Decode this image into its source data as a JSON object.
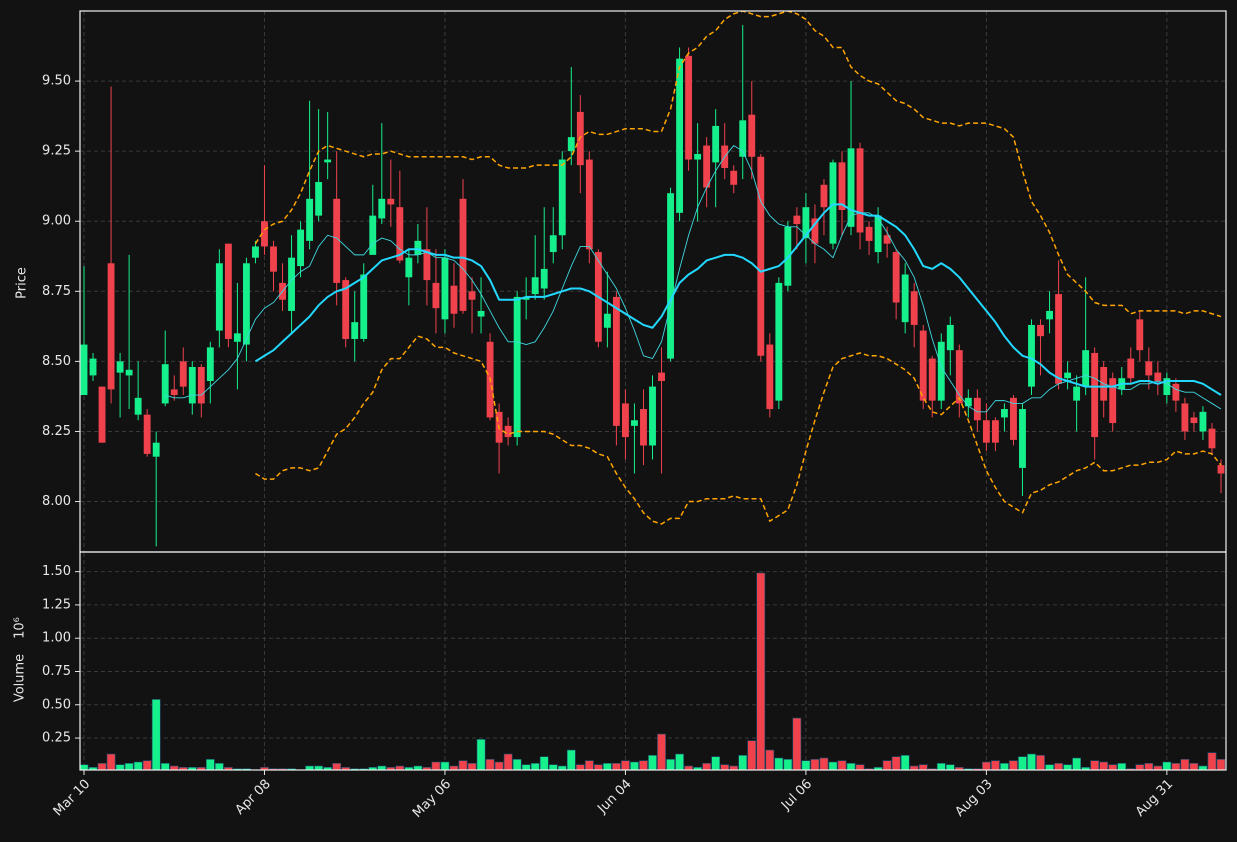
{
  "chart_data": {
    "type": "candlestick",
    "ylabel": "Price",
    "volume_label": "Volume",
    "volume_scale_label": "10⁶",
    "categories": [
      "Mar 10",
      null,
      null,
      null,
      null,
      null,
      null,
      null,
      null,
      null,
      null,
      null,
      null,
      null,
      null,
      null,
      null,
      null,
      null,
      null,
      "Apr 08",
      null,
      null,
      null,
      null,
      null,
      null,
      null,
      null,
      null,
      null,
      null,
      null,
      null,
      null,
      null,
      null,
      null,
      null,
      null,
      "May 06",
      null,
      null,
      null,
      null,
      null,
      null,
      null,
      null,
      null,
      null,
      null,
      null,
      null,
      null,
      null,
      null,
      null,
      null,
      null,
      "Jun 04",
      null,
      null,
      null,
      null,
      null,
      null,
      null,
      null,
      null,
      null,
      null,
      null,
      null,
      null,
      null,
      null,
      null,
      null,
      null,
      "Jul 06",
      null,
      null,
      null,
      null,
      null,
      null,
      null,
      null,
      null,
      null,
      null,
      null,
      null,
      null,
      null,
      null,
      null,
      null,
      null,
      "Aug 03",
      null,
      null,
      null,
      null,
      null,
      null,
      null,
      null,
      null,
      null,
      null,
      null,
      null,
      null,
      null,
      null,
      null,
      null,
      null,
      "Aug 31",
      null,
      null,
      null,
      null,
      null,
      null
    ],
    "open": [
      8.38,
      8.45,
      8.41,
      8.85,
      8.46,
      8.45,
      8.31,
      8.31,
      8.16,
      8.35,
      8.4,
      8.5,
      8.35,
      8.48,
      8.43,
      8.61,
      8.92,
      8.57,
      8.56,
      8.87,
      9.0,
      8.91,
      8.78,
      8.68,
      8.84,
      8.93,
      9.02,
      9.21,
      9.08,
      8.79,
      8.58,
      8.58,
      8.88,
      9.01,
      9.08,
      9.05,
      8.8,
      8.88,
      8.9,
      8.78,
      8.65,
      8.77,
      9.08,
      8.75,
      8.66,
      8.57,
      8.32,
      8.27,
      8.23,
      8.72,
      8.74,
      8.76,
      8.89,
      8.95,
      9.25,
      9.39,
      9.22,
      8.89,
      8.62,
      8.73,
      8.35,
      8.27,
      8.33,
      8.2,
      8.46,
      8.51,
      9.03,
      9.59,
      9.22,
      9.27,
      9.21,
      9.27,
      9.18,
      9.23,
      9.38,
      9.23,
      8.56,
      8.36,
      8.77,
      9.02,
      8.94,
      9.01,
      9.13,
      8.92,
      9.21,
      8.98,
      9.26,
      8.98,
      8.89,
      8.95,
      8.89,
      8.64,
      8.75,
      8.61,
      8.51,
      8.36,
      8.54,
      8.54,
      8.34,
      8.37,
      8.29,
      8.29,
      8.3,
      8.37,
      8.12,
      8.41,
      8.63,
      8.65,
      8.74,
      8.44,
      8.36,
      8.41,
      8.53,
      8.48,
      8.44,
      8.4,
      8.51,
      8.65,
      8.5,
      8.46,
      8.38,
      8.42,
      8.35,
      8.3,
      8.25,
      8.26,
      8.13
    ],
    "high": [
      8.84,
      8.53,
      8.41,
      9.48,
      8.53,
      8.88,
      8.5,
      8.33,
      8.25,
      8.61,
      8.45,
      8.55,
      8.5,
      8.49,
      8.57,
      8.9,
      8.92,
      8.78,
      8.87,
      8.93,
      9.2,
      8.93,
      8.85,
      8.95,
      9.0,
      9.43,
      9.4,
      9.39,
      9.25,
      8.8,
      8.75,
      8.85,
      9.13,
      9.35,
      9.22,
      9.18,
      8.9,
      8.99,
      9.05,
      8.9,
      8.9,
      8.85,
      9.15,
      8.8,
      8.8,
      8.6,
      8.35,
      8.3,
      8.75,
      8.8,
      8.95,
      9.05,
      9.05,
      9.25,
      9.55,
      9.45,
      9.25,
      8.9,
      8.82,
      8.75,
      8.4,
      8.35,
      8.4,
      8.45,
      8.55,
      9.12,
      9.62,
      9.62,
      9.35,
      9.3,
      9.4,
      9.35,
      9.2,
      9.7,
      9.5,
      9.24,
      8.6,
      8.8,
      9.0,
      9.05,
      9.1,
      9.06,
      9.15,
      9.22,
      9.25,
      9.5,
      9.28,
      9.0,
      9.05,
      8.98,
      8.9,
      8.85,
      8.78,
      8.63,
      8.52,
      8.6,
      8.66,
      8.56,
      8.4,
      8.4,
      8.35,
      8.3,
      8.35,
      8.38,
      8.35,
      8.65,
      8.65,
      8.75,
      8.86,
      8.5,
      8.45,
      8.8,
      8.55,
      8.5,
      8.46,
      8.48,
      8.55,
      8.68,
      8.55,
      8.5,
      8.46,
      8.44,
      8.37,
      8.32,
      8.34,
      8.28,
      8.15
    ],
    "low": [
      8.38,
      8.43,
      8.21,
      8.35,
      8.3,
      8.33,
      8.29,
      8.16,
      7.84,
      8.34,
      8.36,
      8.38,
      8.31,
      8.3,
      8.35,
      8.55,
      8.55,
      8.4,
      8.5,
      8.85,
      8.88,
      8.75,
      8.68,
      8.6,
      8.8,
      8.9,
      9.0,
      9.15,
      8.7,
      8.55,
      8.5,
      8.57,
      8.88,
      8.99,
      8.98,
      8.85,
      8.7,
      8.85,
      8.7,
      8.6,
      8.6,
      8.62,
      8.67,
      8.6,
      8.6,
      8.29,
      8.1,
      8.2,
      8.2,
      8.65,
      8.72,
      8.72,
      8.85,
      8.9,
      9.2,
      9.1,
      8.85,
      8.55,
      8.55,
      8.2,
      8.15,
      8.1,
      8.13,
      8.15,
      8.1,
      8.5,
      9.0,
      9.18,
      9.0,
      9.05,
      9.05,
      9.15,
      9.1,
      9.15,
      9.15,
      8.5,
      8.3,
      8.33,
      8.75,
      8.9,
      8.85,
      8.85,
      8.95,
      8.9,
      8.95,
      8.95,
      8.9,
      8.88,
      8.85,
      8.87,
      8.65,
      8.6,
      8.55,
      8.33,
      8.3,
      8.33,
      8.45,
      8.3,
      8.3,
      8.25,
      8.18,
      8.18,
      8.25,
      8.2,
      8.02,
      8.38,
      8.45,
      8.6,
      8.4,
      8.4,
      8.25,
      8.38,
      8.15,
      8.3,
      8.25,
      8.38,
      8.42,
      8.5,
      8.4,
      8.38,
      8.35,
      8.32,
      8.22,
      8.25,
      8.22,
      8.17,
      8.03
    ],
    "close": [
      8.56,
      8.51,
      8.21,
      8.4,
      8.5,
      8.47,
      8.37,
      8.17,
      8.21,
      8.49,
      8.38,
      8.41,
      8.48,
      8.35,
      8.55,
      8.85,
      8.58,
      8.6,
      8.85,
      8.91,
      8.91,
      8.82,
      8.72,
      8.87,
      8.97,
      9.08,
      9.14,
      9.22,
      8.78,
      8.58,
      8.64,
      8.81,
      9.02,
      9.08,
      9.06,
      8.86,
      8.87,
      8.93,
      8.79,
      8.69,
      8.87,
      8.67,
      8.68,
      8.72,
      8.68,
      8.3,
      8.21,
      8.23,
      8.73,
      8.73,
      8.8,
      8.83,
      8.95,
      9.22,
      9.3,
      9.2,
      8.9,
      8.57,
      8.67,
      8.27,
      8.23,
      8.29,
      8.2,
      8.41,
      8.43,
      9.1,
      9.58,
      9.22,
      9.24,
      9.12,
      9.34,
      9.19,
      9.13,
      9.36,
      9.23,
      8.52,
      8.33,
      8.78,
      8.98,
      8.99,
      9.05,
      8.92,
      9.05,
      9.21,
      9.04,
      9.26,
      8.96,
      8.93,
      9.02,
      8.92,
      8.71,
      8.81,
      8.63,
      8.36,
      8.36,
      8.57,
      8.63,
      8.35,
      8.37,
      8.29,
      8.21,
      8.21,
      8.33,
      8.22,
      8.33,
      8.63,
      8.59,
      8.68,
      8.42,
      8.46,
      8.41,
      8.54,
      8.23,
      8.36,
      8.28,
      8.44,
      8.44,
      8.54,
      8.45,
      8.43,
      8.44,
      8.36,
      8.25,
      8.28,
      8.32,
      8.19,
      8.1
    ],
    "volume": [
      0.05,
      0.03,
      0.06,
      0.13,
      0.05,
      0.06,
      0.07,
      0.08,
      0.54,
      0.06,
      0.04,
      0.03,
      0.03,
      0.03,
      0.09,
      0.06,
      0.03,
      0.02,
      0.02,
      0.01,
      0.03,
      0.02,
      0.02,
      0.02,
      0.01,
      0.04,
      0.04,
      0.03,
      0.06,
      0.03,
      0.02,
      0.02,
      0.03,
      0.04,
      0.03,
      0.04,
      0.03,
      0.04,
      0.03,
      0.07,
      0.07,
      0.04,
      0.08,
      0.06,
      0.24,
      0.09,
      0.07,
      0.13,
      0.09,
      0.05,
      0.06,
      0.11,
      0.05,
      0.04,
      0.16,
      0.05,
      0.08,
      0.05,
      0.06,
      0.06,
      0.08,
      0.07,
      0.08,
      0.12,
      0.28,
      0.09,
      0.13,
      0.04,
      0.03,
      0.06,
      0.11,
      0.05,
      0.04,
      0.12,
      0.23,
      1.49,
      0.16,
      0.1,
      0.09,
      0.4,
      0.08,
      0.09,
      0.1,
      0.07,
      0.08,
      0.06,
      0.05,
      0.02,
      0.03,
      0.08,
      0.11,
      0.12,
      0.04,
      0.05,
      0.02,
      0.06,
      0.05,
      0.03,
      0.02,
      0.02,
      0.07,
      0.08,
      0.06,
      0.08,
      0.11,
      0.13,
      0.12,
      0.05,
      0.06,
      0.05,
      0.1,
      0.03,
      0.08,
      0.07,
      0.05,
      0.06,
      0.02,
      0.05,
      0.06,
      0.04,
      0.07,
      0.06,
      0.09,
      0.06,
      0.04,
      0.14,
      0.09
    ],
    "up_color": "#16f08c",
    "down_color": "#f0424d",
    "overlays": [
      {
        "color": "#3fd8e0",
        "width": 0.9,
        "dashed": false,
        "values": [
          null,
          null,
          null,
          null,
          null,
          null,
          null,
          null,
          null,
          8.38,
          8.37,
          8.37,
          8.38,
          8.38,
          8.41,
          8.44,
          8.47,
          8.51,
          8.58,
          8.65,
          8.69,
          8.71,
          8.75,
          8.79,
          8.82,
          8.84,
          8.91,
          8.95,
          8.94,
          8.91,
          8.88,
          8.88,
          8.92,
          8.94,
          8.93,
          8.9,
          8.88,
          8.88,
          8.89,
          8.87,
          8.87,
          8.86,
          8.83,
          8.79,
          8.74,
          8.68,
          8.62,
          8.57,
          8.57,
          8.56,
          8.57,
          8.62,
          8.68,
          8.76,
          8.84,
          8.91,
          8.91,
          8.86,
          8.81,
          8.76,
          8.69,
          8.61,
          8.52,
          8.51,
          8.57,
          8.7,
          8.83,
          8.95,
          9.05,
          9.12,
          9.18,
          9.23,
          9.27,
          9.25,
          9.18,
          9.07,
          9.02,
          8.99,
          8.98,
          8.98,
          8.95,
          8.92,
          8.9,
          8.87,
          8.95,
          9.02,
          9.03,
          9.03,
          9.01,
          8.96,
          8.9,
          8.86,
          8.8,
          8.7,
          8.58,
          8.48,
          8.43,
          8.38,
          8.34,
          8.32,
          8.32,
          8.36,
          8.36,
          8.35,
          8.35,
          8.37,
          8.37,
          8.4,
          8.42,
          8.43,
          8.44,
          8.45,
          8.44,
          8.42,
          8.41,
          8.4,
          8.4,
          8.42,
          8.42,
          8.43,
          8.42,
          8.4,
          8.39,
          8.39,
          8.37,
          8.35,
          8.33
        ]
      },
      {
        "color": "#22d8ff",
        "width": 2,
        "dashed": false,
        "values": [
          null,
          null,
          null,
          null,
          null,
          null,
          null,
          null,
          null,
          null,
          null,
          null,
          null,
          null,
          null,
          null,
          null,
          null,
          null,
          8.5,
          8.52,
          8.54,
          8.57,
          8.6,
          8.63,
          8.66,
          8.7,
          8.73,
          8.75,
          8.76,
          8.78,
          8.8,
          8.83,
          8.86,
          8.87,
          8.88,
          8.9,
          8.9,
          8.89,
          8.88,
          8.88,
          8.87,
          8.87,
          8.86,
          8.84,
          8.79,
          8.72,
          8.72,
          8.72,
          8.73,
          8.73,
          8.73,
          8.74,
          8.75,
          8.76,
          8.76,
          8.75,
          8.73,
          8.71,
          8.69,
          8.67,
          8.65,
          8.63,
          8.62,
          8.66,
          8.72,
          8.78,
          8.81,
          8.83,
          8.86,
          8.87,
          8.88,
          8.88,
          8.87,
          8.85,
          8.82,
          8.83,
          8.84,
          8.87,
          8.91,
          8.95,
          8.99,
          9.03,
          9.06,
          9.06,
          9.04,
          9.03,
          9.02,
          9.02,
          9.0,
          8.98,
          8.95,
          8.9,
          8.84,
          8.83,
          8.85,
          8.83,
          8.8,
          8.76,
          8.72,
          8.68,
          8.64,
          8.59,
          8.55,
          8.52,
          8.51,
          8.49,
          8.46,
          8.44,
          8.43,
          8.42,
          8.41,
          8.41,
          8.41,
          8.41,
          8.42,
          8.42,
          8.43,
          8.43,
          8.42,
          8.43,
          8.43,
          8.43,
          8.43,
          8.42,
          8.4,
          8.38
        ]
      },
      {
        "color": "#ffa500",
        "width": 1.5,
        "dashed": true,
        "values": [
          null,
          null,
          null,
          null,
          null,
          null,
          null,
          null,
          null,
          null,
          null,
          null,
          null,
          null,
          null,
          null,
          null,
          null,
          null,
          8.92,
          8.97,
          8.99,
          9.0,
          9.04,
          9.1,
          9.18,
          9.25,
          9.27,
          9.26,
          9.25,
          9.24,
          9.23,
          9.24,
          9.24,
          9.25,
          9.24,
          9.23,
          9.23,
          9.23,
          9.23,
          9.23,
          9.23,
          9.23,
          9.22,
          9.23,
          9.23,
          9.2,
          9.19,
          9.19,
          9.19,
          9.2,
          9.2,
          9.2,
          9.2,
          9.23,
          9.3,
          9.32,
          9.31,
          9.31,
          9.32,
          9.33,
          9.33,
          9.33,
          9.32,
          9.32,
          9.4,
          9.55,
          9.6,
          9.62,
          9.66,
          9.68,
          9.72,
          9.74,
          9.75,
          9.74,
          9.73,
          9.73,
          9.74,
          9.75,
          9.74,
          9.72,
          9.68,
          9.66,
          9.62,
          9.62,
          9.55,
          9.52,
          9.5,
          9.49,
          9.46,
          9.43,
          9.42,
          9.4,
          9.37,
          9.36,
          9.35,
          9.35,
          9.34,
          9.35,
          9.35,
          9.35,
          9.34,
          9.33,
          9.3,
          9.18,
          9.07,
          9.02,
          8.96,
          8.88,
          8.81,
          8.78,
          8.75,
          8.71,
          8.7,
          8.7,
          8.7,
          8.67,
          8.68,
          8.68,
          8.68,
          8.68,
          8.68,
          8.67,
          8.68,
          8.68,
          8.67,
          8.66
        ]
      },
      {
        "color": "#ffa500",
        "width": 1.5,
        "dashed": true,
        "values": [
          null,
          null,
          null,
          null,
          null,
          null,
          null,
          null,
          null,
          null,
          null,
          null,
          null,
          null,
          null,
          null,
          null,
          null,
          null,
          8.1,
          8.08,
          8.08,
          8.11,
          8.12,
          8.12,
          8.11,
          8.12,
          8.18,
          8.24,
          8.26,
          8.3,
          8.35,
          8.39,
          8.47,
          8.51,
          8.51,
          8.55,
          8.59,
          8.58,
          8.55,
          8.55,
          8.53,
          8.52,
          8.51,
          8.5,
          8.44,
          8.26,
          8.24,
          8.25,
          8.25,
          8.25,
          8.25,
          8.24,
          8.22,
          8.2,
          8.2,
          8.19,
          8.17,
          8.16,
          8.1,
          8.05,
          8.01,
          7.96,
          7.93,
          7.92,
          7.94,
          7.94,
          8.0,
          8.0,
          8.01,
          8.01,
          8.01,
          8.02,
          8.01,
          8.01,
          8.01,
          7.93,
          7.95,
          7.97,
          8.06,
          8.18,
          8.29,
          8.39,
          8.48,
          8.51,
          8.52,
          8.53,
          8.52,
          8.52,
          8.51,
          8.49,
          8.47,
          8.44,
          8.37,
          8.32,
          8.31,
          8.34,
          8.37,
          8.29,
          8.2,
          8.11,
          8.05,
          8.0,
          7.98,
          7.96,
          8.03,
          8.04,
          8.06,
          8.07,
          8.09,
          8.11,
          8.12,
          8.14,
          8.11,
          8.11,
          8.12,
          8.13,
          8.13,
          8.14,
          8.14,
          8.15,
          8.18,
          8.17,
          8.17,
          8.18,
          8.17,
          8.13
        ]
      }
    ],
    "ylim": [
      7.82,
      9.75
    ],
    "yticks": [
      {
        "value": 8,
        "label": "8.00"
      },
      {
        "value": 8.25,
        "label": "8.25"
      },
      {
        "value": 8.5,
        "label": "8.50"
      },
      {
        "value": 8.75,
        "label": "8.75"
      },
      {
        "value": 9,
        "label": "9.00"
      },
      {
        "value": 9.25,
        "label": "9.25"
      },
      {
        "value": 9.5,
        "label": "9.50"
      }
    ],
    "volume_ylim": [
      0.01,
      1.64
    ],
    "volume_yticks": [
      0.25,
      {
        "value": 0.5,
        "label": "0.50"
      },
      0.75,
      {
        "value": 1,
        "label": "1.00"
      },
      1.25,
      {
        "value": 1.5,
        "label": "1.50"
      }
    ],
    "grid": true
  }
}
